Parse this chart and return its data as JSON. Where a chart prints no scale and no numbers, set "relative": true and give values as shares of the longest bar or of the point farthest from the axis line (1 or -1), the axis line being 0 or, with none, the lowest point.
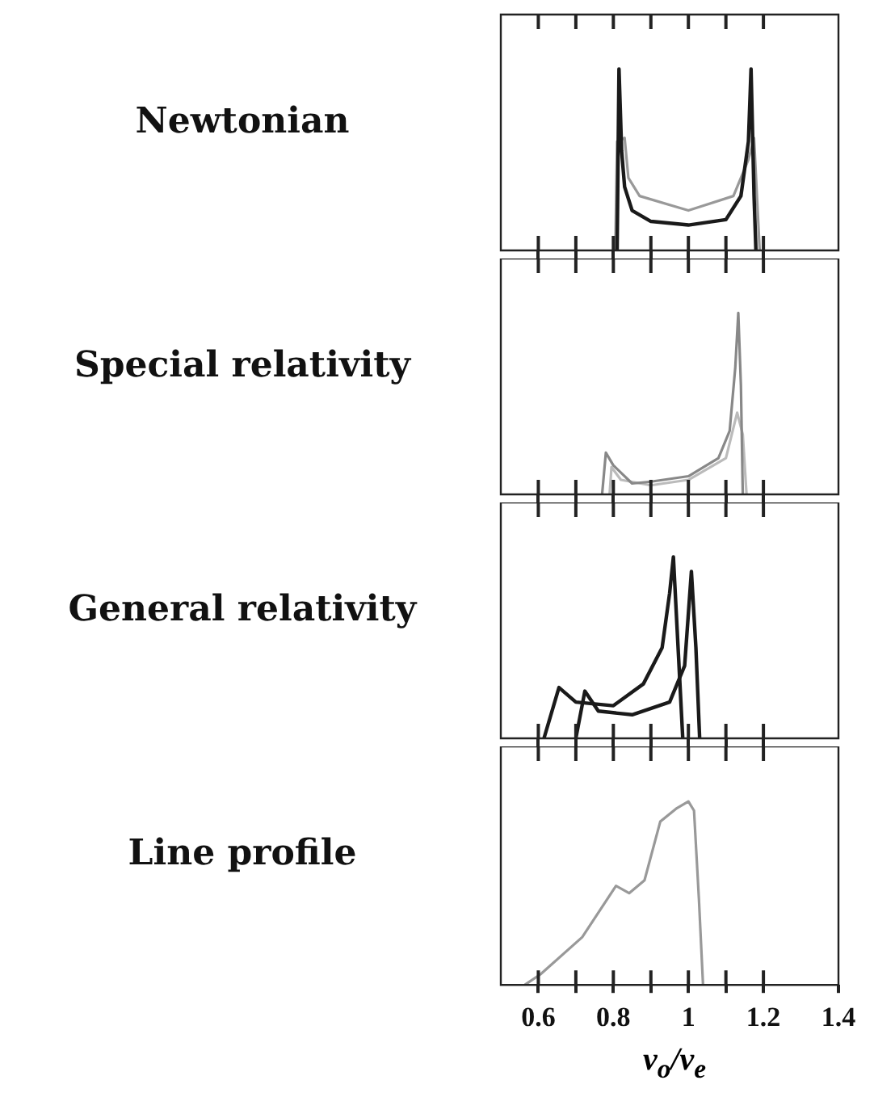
{
  "chart_data": [
    {
      "type": "line",
      "title": "Newtonian",
      "relative": true,
      "tick_labels": false,
      "xlim": [
        0.5,
        1.4
      ],
      "xticks": [
        {
          "value": 0.6,
          "label": null
        },
        {
          "value": 0.7,
          "label": null
        },
        {
          "value": 0.8,
          "label": null
        },
        {
          "value": 0.9,
          "label": null
        },
        {
          "value": 1,
          "label": null
        },
        {
          "value": 1.1,
          "label": null
        },
        {
          "value": 1.2,
          "label": null
        }
      ],
      "series": [
        {
          "color": "#1a1a1a",
          "x": [
            0.81,
            0.815,
            0.822,
            0.83,
            0.85,
            0.9,
            1.0,
            1.1,
            1.14,
            1.16,
            1.167,
            1.175,
            1.18
          ],
          "values": [
            0,
            1,
            0.55,
            0.35,
            0.22,
            0.16,
            0.14,
            0.17,
            0.3,
            0.6,
            1,
            0.3,
            0
          ]
        },
        {
          "color": "#999999",
          "x": [
            0.805,
            0.81,
            0.83,
            0.84,
            0.87,
            1.0,
            1.12,
            1.16,
            1.175,
            1.19
          ],
          "values": [
            0,
            0.6,
            0.62,
            0.4,
            0.3,
            0.22,
            0.3,
            0.5,
            0.62,
            0
          ]
        }
      ]
    },
    {
      "type": "line",
      "title": "Special relativity",
      "relative": true,
      "tick_labels": false,
      "xlim": [
        0.5,
        1.4
      ],
      "xticks": [
        {
          "value": 0.6,
          "label": null
        },
        {
          "value": 0.7,
          "label": null
        },
        {
          "value": 0.8,
          "label": null
        },
        {
          "value": 0.9,
          "label": null
        },
        {
          "value": 1,
          "label": null
        },
        {
          "value": 1.1,
          "label": null
        },
        {
          "value": 1.2,
          "label": null
        }
      ],
      "series": [
        {
          "color": "#888888",
          "x": [
            0.77,
            0.78,
            0.8,
            0.85,
            0.9,
            1.0,
            1.08,
            1.11,
            1.125,
            1.133,
            1.14,
            1.145
          ],
          "values": [
            0,
            0.23,
            0.16,
            0.06,
            0.07,
            0.1,
            0.2,
            0.35,
            0.7,
            1,
            0.6,
            0
          ]
        },
        {
          "color": "#bbbbbb",
          "x": [
            0.79,
            0.795,
            0.82,
            0.9,
            1.0,
            1.1,
            1.13,
            1.145,
            1.155
          ],
          "values": [
            0,
            0.15,
            0.08,
            0.05,
            0.08,
            0.2,
            0.45,
            0.33,
            0
          ]
        }
      ]
    },
    {
      "type": "line",
      "title": "General relativity",
      "relative": true,
      "tick_labels": false,
      "xlim": [
        0.5,
        1.4
      ],
      "xticks": [
        {
          "value": 0.6,
          "label": null
        },
        {
          "value": 0.7,
          "label": null
        },
        {
          "value": 0.8,
          "label": null
        },
        {
          "value": 0.9,
          "label": null
        },
        {
          "value": 1,
          "label": null
        },
        {
          "value": 1.1,
          "label": null
        },
        {
          "value": 1.2,
          "label": null
        }
      ],
      "series": [
        {
          "color": "#1a1a1a",
          "x": [
            0.615,
            0.655,
            0.7,
            0.8,
            0.88,
            0.93,
            0.95,
            0.96,
            0.97,
            0.985
          ],
          "values": [
            0,
            0.28,
            0.2,
            0.18,
            0.3,
            0.5,
            0.8,
            1,
            0.6,
            0
          ]
        },
        {
          "color": "#1a1a1a",
          "x": [
            0.7,
            0.724,
            0.76,
            0.85,
            0.95,
            0.99,
            1.008,
            1.02,
            1.03
          ],
          "values": [
            0,
            0.26,
            0.15,
            0.13,
            0.2,
            0.4,
            0.92,
            0.5,
            0
          ]
        }
      ]
    },
    {
      "type": "line",
      "title": "Line profile",
      "relative": true,
      "tick_labels": "x",
      "xlabel": "ν$_{o}$/ν$_{e}$",
      "xlim": [
        0.5,
        1.4
      ],
      "xticks": [
        0.6,
        {
          "value": 0.7,
          "label": null
        },
        0.8,
        {
          "value": 0.9,
          "label": null
        },
        1,
        {
          "value": 1.1,
          "label": null
        },
        1.2,
        1.4
      ],
      "series": [
        {
          "color": "#999999",
          "x": [
            0.564,
            0.606,
            0.717,
            0.807,
            0.842,
            0.883,
            0.925,
            0.967,
            1.0,
            1.015,
            1.028,
            1.039
          ],
          "values": [
            0,
            0.058,
            0.26,
            0.54,
            0.5,
            0.57,
            0.89,
            0.96,
            1,
            0.95,
            0.47,
            0
          ]
        }
      ]
    }
  ]
}
